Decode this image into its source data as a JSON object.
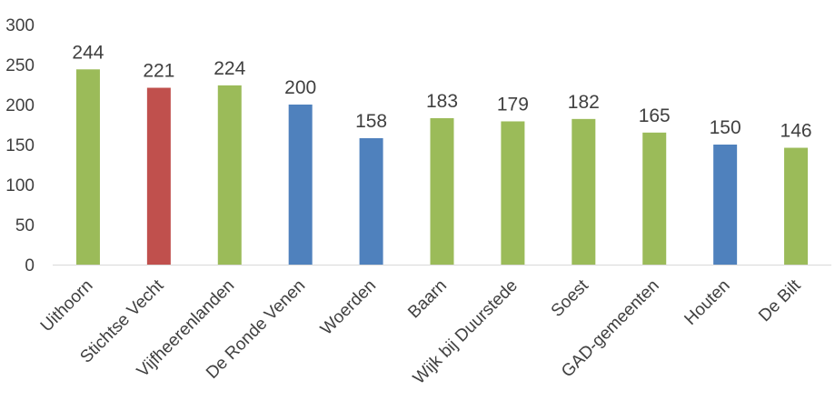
{
  "chart_data": {
    "type": "bar",
    "categories": [
      "Uithoorn",
      "Stichtse Vecht",
      "Vijfheerenlanden",
      "De Ronde Venen",
      "Woerden",
      "Baarn",
      "Wijk bij Duurstede",
      "Soest",
      "GAD-gemeenten",
      "Houten",
      "De Bilt"
    ],
    "values": [
      244,
      221,
      224,
      200,
      158,
      183,
      179,
      182,
      165,
      150,
      146
    ],
    "colors": [
      "#9bbb59",
      "#c0504d",
      "#9bbb59",
      "#4f81bd",
      "#4f81bd",
      "#9bbb59",
      "#9bbb59",
      "#9bbb59",
      "#9bbb59",
      "#4f81bd",
      "#9bbb59"
    ],
    "title": "",
    "xlabel": "",
    "ylabel": "",
    "ylim": [
      0,
      300
    ],
    "yticks": [
      0,
      50,
      100,
      150,
      200,
      250,
      300
    ],
    "data_labels": true,
    "grid": false,
    "legend": "none"
  }
}
